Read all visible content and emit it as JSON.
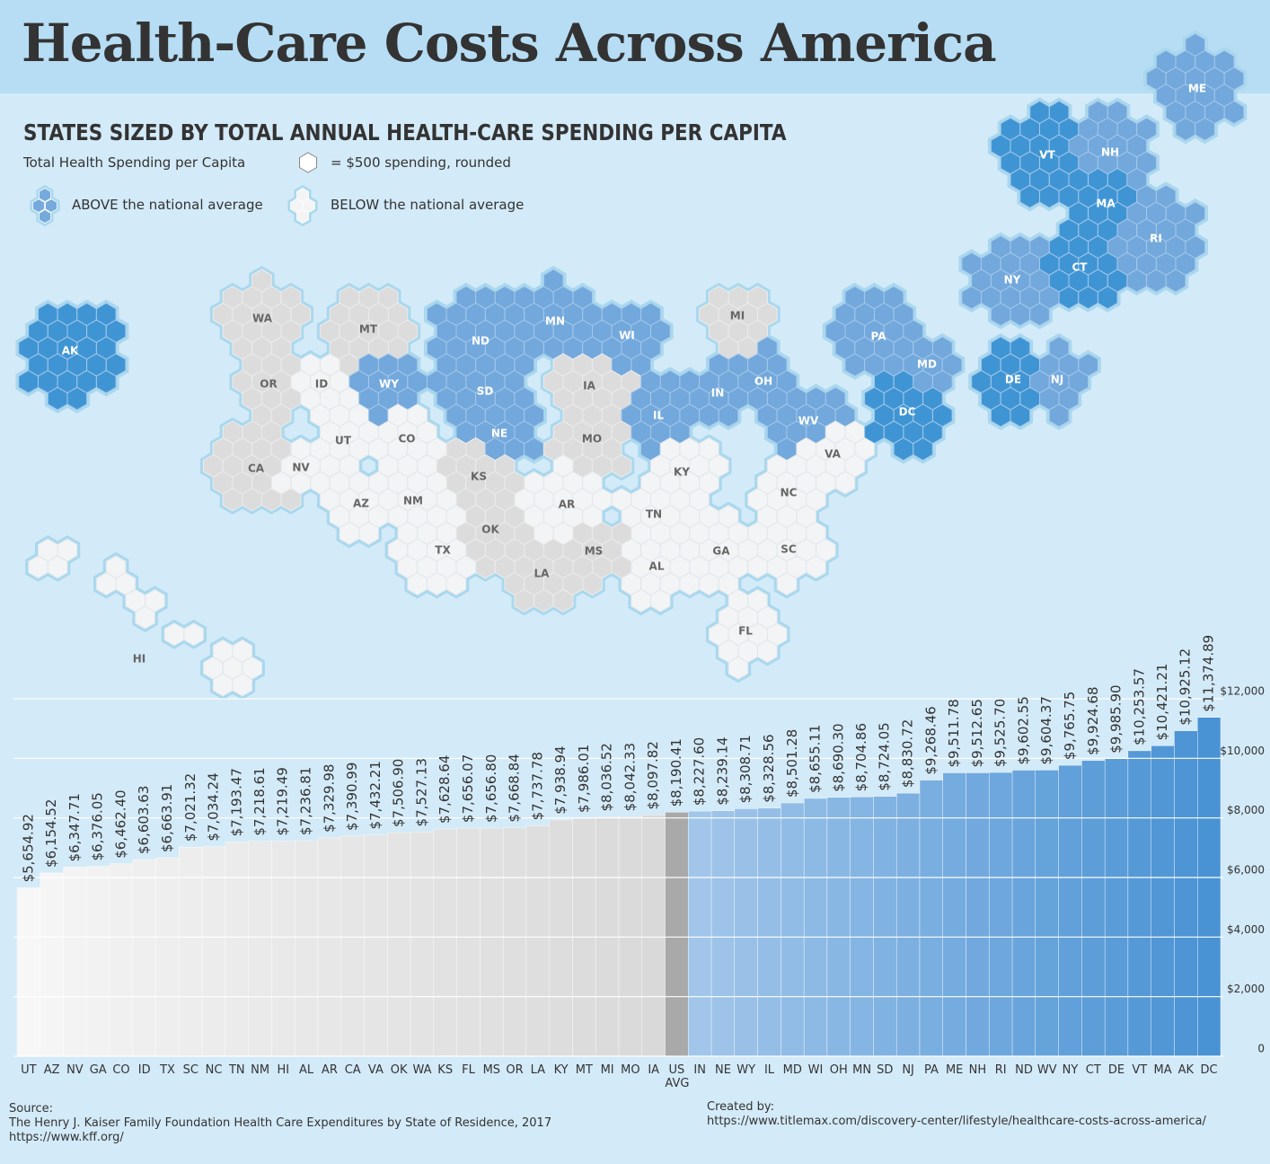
{
  "header": {
    "title": "Health-Care Costs Across America",
    "subtitle": "STATES SIZED BY TOTAL ANNUAL HEALTH-CARE SPENDING PER CAPITA"
  },
  "legend": {
    "measure": "Total Health Spending per Capita",
    "hex": "= $500 spending, rounded",
    "above": "ABOVE the national average",
    "below": "BELOW the national average"
  },
  "map": {
    "states": [
      "AK",
      "WA",
      "OR",
      "CA",
      "NV",
      "ID",
      "MT",
      "WY",
      "UT",
      "AZ",
      "CO",
      "NM",
      "ND",
      "SD",
      "NE",
      "KS",
      "OK",
      "TX",
      "MN",
      "IA",
      "MO",
      "AR",
      "LA",
      "MS",
      "AL",
      "TN",
      "KY",
      "IL",
      "WI",
      "MI",
      "IN",
      "OH",
      "WV",
      "VA",
      "NC",
      "SC",
      "GA",
      "FL",
      "PA",
      "MD",
      "DC",
      "DE",
      "NJ",
      "NY",
      "CT",
      "RI",
      "MA",
      "VT",
      "NH",
      "ME",
      "HI"
    ]
  },
  "chart_data": {
    "type": "bar",
    "categories": [
      "UT",
      "AZ",
      "NV",
      "GA",
      "CO",
      "ID",
      "TX",
      "SC",
      "NC",
      "TN",
      "NM",
      "HI",
      "AL",
      "AR",
      "CA",
      "VA",
      "OK",
      "WA",
      "KS",
      "FL",
      "MS",
      "OR",
      "LA",
      "KY",
      "MT",
      "MI",
      "MO",
      "IA",
      "US AVG",
      "IN",
      "NE",
      "WY",
      "IL",
      "MD",
      "WI",
      "OH",
      "MN",
      "SD",
      "NJ",
      "PA",
      "ME",
      "NH",
      "RI",
      "ND",
      "WV",
      "NY",
      "CT",
      "DE",
      "VT",
      "MA",
      "AK",
      "DC"
    ],
    "values": [
      5654.92,
      6154.52,
      6347.71,
      6376.05,
      6462.4,
      6603.63,
      6663.91,
      7021.32,
      7034.24,
      7193.47,
      7218.61,
      7219.49,
      7236.81,
      7329.98,
      7390.99,
      7432.21,
      7506.9,
      7527.13,
      7628.64,
      7656.07,
      7656.8,
      7668.84,
      7737.78,
      7938.94,
      7986.01,
      8036.52,
      8042.33,
      8097.82,
      8190.41,
      8227.6,
      8239.14,
      8308.71,
      8328.56,
      8501.28,
      8655.11,
      8690.3,
      8704.86,
      8724.05,
      8830.72,
      9268.46,
      9511.78,
      9512.65,
      9525.7,
      9602.55,
      9604.37,
      9765.75,
      9924.68,
      9985.9,
      10253.57,
      10421.21,
      10925.12,
      11374.89
    ],
    "value_labels": [
      "$5,654.92",
      "$6,154.52",
      "$6,347.71",
      "$6,376.05",
      "$6,462.40",
      "$6,603.63",
      "$6,663.91",
      "$7,021.32",
      "$7,034.24",
      "$7,193.47",
      "$7,218.61",
      "$7,219.49",
      "$7,236.81",
      "$7,329.98",
      "$7,390.99",
      "$7,432.21",
      "$7,506.90",
      "$7,527.13",
      "$7,628.64",
      "$7,656.07",
      "$7,656.80",
      "$7,668.84",
      "$7,737.78",
      "$7,938.94",
      "$7,986.01",
      "$8,036.52",
      "$8,042.33",
      "$8,097.82",
      "$8,190.41",
      "$8,227.60",
      "$8,239.14",
      "$8,308.71",
      "$8,328.56",
      "$8,501.28",
      "$8,655.11",
      "$8,690.30",
      "$8,704.86",
      "$8,724.05",
      "$8,830.72",
      "$9,268.46",
      "$9,511.78",
      "$9,512.65",
      "$9,525.70",
      "$9,602.55",
      "$9,604.37",
      "$9,765.75",
      "$9,924.68",
      "$9,985.90",
      "$10,253.57",
      "$10,421.21",
      "$10,925.12",
      "$11,374.89"
    ],
    "colors": [
      "#f7f7f7",
      "#f5f5f5",
      "#f3f3f3",
      "#f2f2f2",
      "#f0f0f0",
      "#efefef",
      "#eeeeee",
      "#ededed",
      "#ececec",
      "#ebebeb",
      "#eaeaea",
      "#e9e9e9",
      "#e8e8e8",
      "#e7e7e7",
      "#e6e6e6",
      "#e5e5e5",
      "#e4e4e4",
      "#e3e3e3",
      "#e2e2e2",
      "#e1e1e1",
      "#e0e0e0",
      "#dfdfdf",
      "#dedede",
      "#dddddd",
      "#dcdcdc",
      "#dbdbdb",
      "#dadada",
      "#d9d9d9",
      "#a9a9a9",
      "#a1c6ea",
      "#9dc3e9",
      "#99c1e8",
      "#95bee7",
      "#91bce6",
      "#8dbae5",
      "#89b7e4",
      "#85b5e3",
      "#81b3e2",
      "#7db0e1",
      "#79aee0",
      "#75acdf",
      "#71a9de",
      "#6da7dd",
      "#69a5dc",
      "#65a3db",
      "#61a0da",
      "#5d9ed9",
      "#599cd8",
      "#5599d7",
      "#5197d6",
      "#4d95d5",
      "#4993d4"
    ],
    "ylim": [
      0,
      12000
    ],
    "yticks": [
      0,
      {
        "value": 2000,
        "label": "$2,000"
      },
      {
        "value": 4000,
        "label": "$4,000"
      },
      {
        "value": 6000,
        "label": "$6,000"
      },
      {
        "value": 8000,
        "label": "$8,000"
      },
      {
        "value": 10000,
        "label": "$10,000"
      },
      {
        "value": 12000,
        "label": "$12,000"
      }
    ],
    "grid": true
  },
  "footer": {
    "source_label": "Source:",
    "source": "The Henry J. Kaiser Family Foundation Health Care Expenditures by State of Residence, 2017",
    "source_url": "https://www.kff.org/",
    "credit_label": "Created by:",
    "credit_url": "https://www.titlemax.com/discovery-center/lifestyle/healthcare-costs-across-america/"
  }
}
